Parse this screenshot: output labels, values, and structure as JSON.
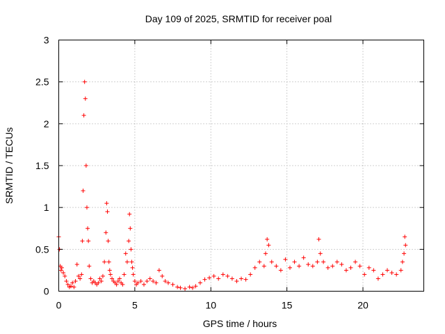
{
  "chart_data": {
    "type": "scatter",
    "title": "Day 109 of 2025, SRMTID for receiver poal",
    "xlabel": "GPS time / hours",
    "ylabel": "SRMTID / TECUs",
    "xlim": [
      0,
      24
    ],
    "ylim": [
      0,
      3
    ],
    "xticks": [
      0,
      5,
      10,
      15,
      20
    ],
    "xtick_labels": [
      "0",
      "5",
      "10",
      "15",
      "20"
    ],
    "yticks": [
      0,
      0.5,
      1,
      1.5,
      2,
      2.5,
      3
    ],
    "ytick_labels": [
      "0",
      "0.5",
      "1",
      "1.5",
      "2",
      "2.5",
      "3"
    ],
    "grid": true,
    "marker": "+",
    "series": [
      {
        "name": "SRMTID",
        "color": "#ff0000",
        "x": [
          0.0,
          0.05,
          0.1,
          0.15,
          0.2,
          0.3,
          0.4,
          0.5,
          0.6,
          0.7,
          0.8,
          0.9,
          1.0,
          1.1,
          1.2,
          1.3,
          1.4,
          1.5,
          1.55,
          1.6,
          1.65,
          1.7,
          1.75,
          1.8,
          1.85,
          1.9,
          1.95,
          2.0,
          2.1,
          2.2,
          2.3,
          2.4,
          2.5,
          2.6,
          2.7,
          2.8,
          2.9,
          3.0,
          3.1,
          3.15,
          3.2,
          3.25,
          3.3,
          3.35,
          3.4,
          3.5,
          3.6,
          3.7,
          3.8,
          3.9,
          4.0,
          4.1,
          4.2,
          4.3,
          4.4,
          4.5,
          4.6,
          4.65,
          4.7,
          4.75,
          4.8,
          4.85,
          4.9,
          5.0,
          5.1,
          5.2,
          5.4,
          5.6,
          5.8,
          6.0,
          6.2,
          6.4,
          6.6,
          6.8,
          7.0,
          7.2,
          7.5,
          7.8,
          8.0,
          8.3,
          8.6,
          8.8,
          9.0,
          9.3,
          9.6,
          9.9,
          10.2,
          10.5,
          10.8,
          11.1,
          11.4,
          11.7,
          12.0,
          12.3,
          12.6,
          12.9,
          13.2,
          13.5,
          13.6,
          13.7,
          13.8,
          14.0,
          14.3,
          14.6,
          14.9,
          15.2,
          15.5,
          15.8,
          16.1,
          16.4,
          16.7,
          17.0,
          17.1,
          17.2,
          17.4,
          17.7,
          18.0,
          18.3,
          18.6,
          18.9,
          19.2,
          19.5,
          19.8,
          20.1,
          20.4,
          20.7,
          21.0,
          21.3,
          21.6,
          21.9,
          22.2,
          22.5,
          22.6,
          22.7,
          22.75,
          22.8
        ],
        "y": [
          0.65,
          0.5,
          0.3,
          0.25,
          0.28,
          0.22,
          0.18,
          0.12,
          0.08,
          0.05,
          0.06,
          0.1,
          0.05,
          0.12,
          0.32,
          0.18,
          0.15,
          0.2,
          0.6,
          1.2,
          2.1,
          2.5,
          2.3,
          1.5,
          1.0,
          0.75,
          0.6,
          0.3,
          0.15,
          0.1,
          0.12,
          0.1,
          0.08,
          0.1,
          0.15,
          0.12,
          0.18,
          0.35,
          0.7,
          1.05,
          0.95,
          0.6,
          0.35,
          0.25,
          0.2,
          0.15,
          0.12,
          0.1,
          0.08,
          0.12,
          0.15,
          0.1,
          0.08,
          0.2,
          0.45,
          0.35,
          0.6,
          0.92,
          0.75,
          0.5,
          0.35,
          0.28,
          0.2,
          0.12,
          0.08,
          0.1,
          0.12,
          0.08,
          0.12,
          0.15,
          0.12,
          0.1,
          0.25,
          0.18,
          0.12,
          0.1,
          0.08,
          0.05,
          0.04,
          0.03,
          0.05,
          0.04,
          0.06,
          0.1,
          0.14,
          0.16,
          0.18,
          0.15,
          0.2,
          0.18,
          0.15,
          0.12,
          0.15,
          0.14,
          0.2,
          0.28,
          0.35,
          0.3,
          0.45,
          0.62,
          0.55,
          0.35,
          0.3,
          0.25,
          0.38,
          0.28,
          0.35,
          0.3,
          0.4,
          0.32,
          0.3,
          0.35,
          0.62,
          0.45,
          0.35,
          0.28,
          0.3,
          0.35,
          0.32,
          0.25,
          0.28,
          0.35,
          0.3,
          0.2,
          0.28,
          0.25,
          0.15,
          0.2,
          0.25,
          0.22,
          0.2,
          0.25,
          0.35,
          0.45,
          0.65,
          0.55
        ]
      }
    ]
  }
}
